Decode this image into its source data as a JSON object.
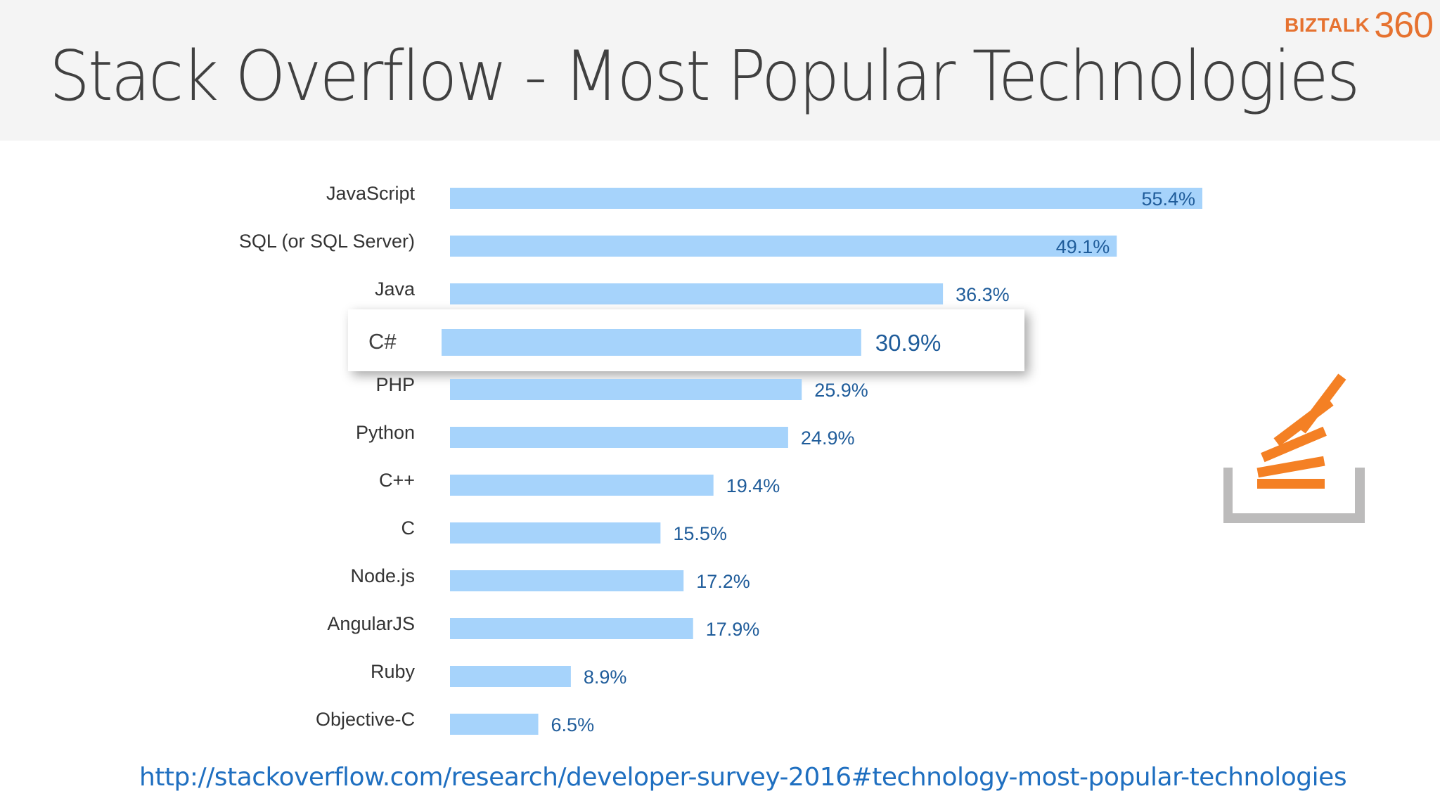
{
  "header": {
    "title": "Stack Overflow - Most Popular Technologies",
    "brand_text": "BIZTALK",
    "brand_number": "360"
  },
  "chart_data": {
    "type": "bar",
    "orientation": "horizontal",
    "categories": [
      "JavaScript",
      "SQL (or SQL Server)",
      "Java",
      "C#",
      "PHP",
      "Python",
      "C++",
      "C",
      "Node.js",
      "AngularJS",
      "Ruby",
      "Objective-C"
    ],
    "values": [
      55.4,
      49.1,
      36.3,
      30.9,
      25.9,
      24.9,
      19.4,
      15.5,
      17.2,
      17.9,
      8.9,
      6.5
    ],
    "value_labels": [
      "55.4%",
      "49.1%",
      "36.3%",
      "30.9%",
      "25.9%",
      "24.9%",
      "19.4%",
      "15.5%",
      "17.2%",
      "17.9%",
      "8.9%",
      "6.5%"
    ],
    "highlighted_category": "C#",
    "title": "",
    "xlabel": "",
    "ylabel": "",
    "xlim": [
      0,
      55.4
    ],
    "grid": false,
    "bar_color": "#a6d3fb"
  },
  "logo": {
    "icon": "stack-overflow-icon",
    "accent": "#f48024",
    "tray": "#bcbbbb"
  },
  "footer": {
    "url": "http://stackoverflow.com/research/developer-survey-2016#technology-most-popular-technologies"
  }
}
